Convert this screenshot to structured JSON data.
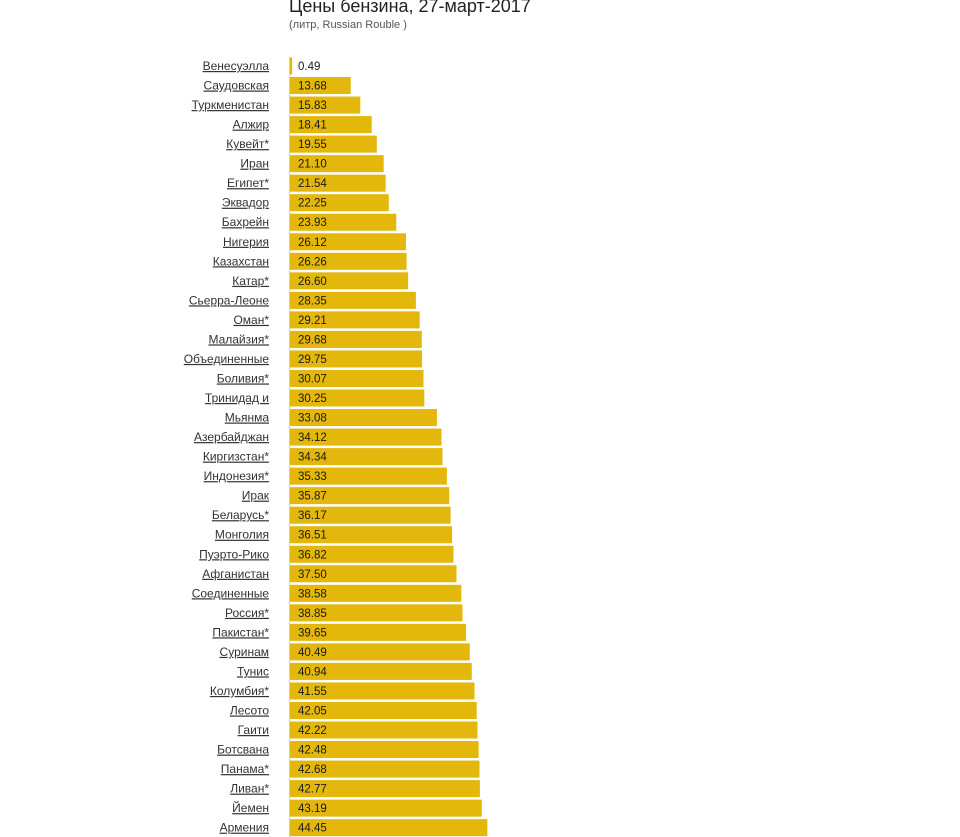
{
  "chart_data": {
    "type": "bar",
    "orientation": "horizontal",
    "title": "Цены бензина, 27-март-2017",
    "subtitle": "(литр, Russian Rouble )",
    "bar_color": "#e3b70b",
    "categories": [
      "Венесуэлла",
      "Саудовская",
      "Туркменистан",
      "Алжир",
      "Кувейт*",
      "Иран",
      "Египет*",
      "Эквадор",
      "Бахрейн",
      "Нигерия",
      "Казахстан",
      "Катар*",
      "Сьерра-Леоне",
      "Оман*",
      "Малайзия*",
      "Объединенные",
      "Боливия*",
      "Тринидад и",
      "Мьянма",
      "Азербайджан",
      "Киргизстан*",
      "Индонезия*",
      "Ирак",
      "Беларусь*",
      "Монголия",
      "Пуэрто-Рико",
      "Афганистан",
      "Соединенные",
      "Россия*",
      "Пакистан*",
      "Суринам",
      "Тунис",
      "Колумбия*",
      "Лесото",
      "Гаити",
      "Ботсвана",
      "Панама*",
      "Ливан*",
      "Йемен",
      "Армения"
    ],
    "values": [
      0.49,
      13.68,
      15.83,
      18.41,
      19.55,
      21.1,
      21.54,
      22.25,
      23.93,
      26.12,
      26.26,
      26.6,
      28.35,
      29.21,
      29.68,
      29.75,
      30.07,
      30.25,
      33.08,
      34.12,
      34.34,
      35.33,
      35.87,
      36.17,
      36.51,
      36.82,
      37.5,
      38.58,
      38.85,
      39.65,
      40.49,
      40.94,
      41.55,
      42.05,
      42.22,
      42.48,
      42.68,
      42.77,
      43.19,
      44.45
    ],
    "value_labels": [
      "0.49",
      "13.68",
      "15.83",
      "18.41",
      "19.55",
      "21.10",
      "21.54",
      "22.25",
      "23.93",
      "26.12",
      "26.26",
      "26.60",
      "28.35",
      "29.21",
      "29.68",
      "29.75",
      "30.07",
      "30.25",
      "33.08",
      "34.12",
      "34.34",
      "35.33",
      "35.87",
      "36.17",
      "36.51",
      "36.82",
      "37.50",
      "38.58",
      "38.85",
      "39.65",
      "40.49",
      "40.94",
      "41.55",
      "42.05",
      "42.22",
      "42.48",
      "42.68",
      "42.77",
      "43.19",
      "44.45"
    ],
    "grid": false,
    "legend": "none"
  }
}
